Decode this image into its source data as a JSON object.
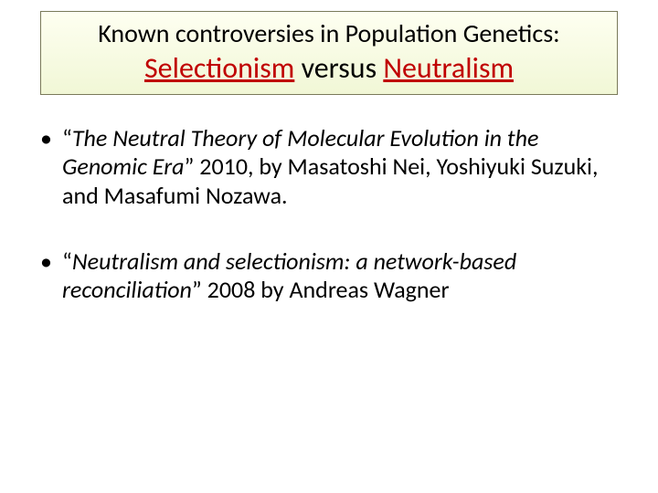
{
  "title": {
    "line1": "Known controversies in Population Genetics:",
    "word1": "Selectionism",
    "versus": " versus ",
    "word2": "Neutralism"
  },
  "bullets": [
    {
      "quoteOpen": "“",
      "italic": "The Neutral Theory of Molecular Evolution in the Genomic Era",
      "rest": "” 2010, by Masatoshi Nei, Yoshiyuki Suzuki, and Masafumi Nozawa."
    },
    {
      "quoteOpen": "“",
      "italic": "Neutralism and selectionism: a network-based reconciliation",
      "rest": "” 2008 by Andreas Wagner"
    }
  ],
  "style": {
    "background_color": "#ffffff",
    "title_box_border": "#7a7a5a",
    "title_box_fill_top": "#fefff1",
    "title_box_fill_bottom": "#f1f7d6",
    "title_line1_fontsize": 28,
    "title_line2_fontsize": 32,
    "title_red": "#c00000",
    "body_fontsize": 26,
    "text_color": "#000000",
    "font_family": "Calibri"
  }
}
